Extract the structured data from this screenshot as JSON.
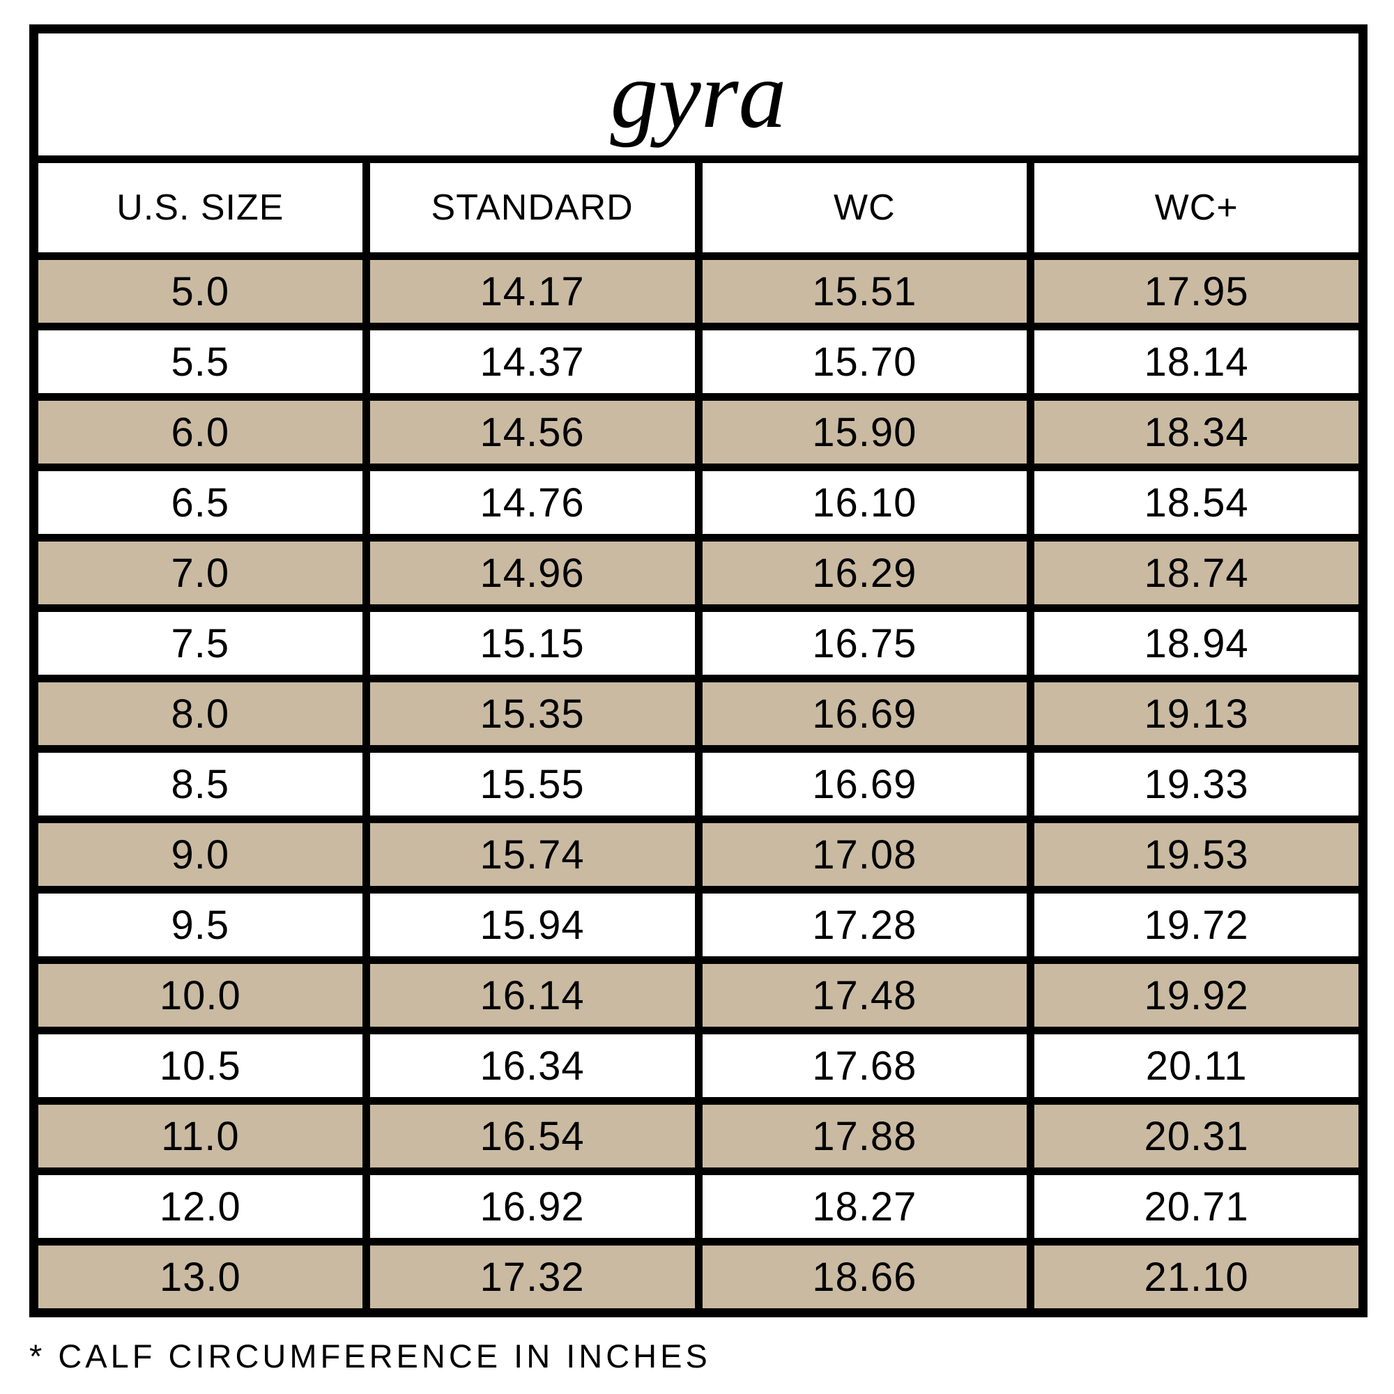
{
  "title": "gyra",
  "chart_data": {
    "type": "table",
    "title": "gyra",
    "columns": [
      "U.S. SIZE",
      "STANDARD",
      "WC",
      "WC+"
    ],
    "rows": [
      [
        "5.0",
        "14.17",
        "15.51",
        "17.95"
      ],
      [
        "5.5",
        "14.37",
        "15.70",
        "18.14"
      ],
      [
        "6.0",
        "14.56",
        "15.90",
        "18.34"
      ],
      [
        "6.5",
        "14.76",
        "16.10",
        "18.54"
      ],
      [
        "7.0",
        "14.96",
        "16.29",
        "18.74"
      ],
      [
        "7.5",
        "15.15",
        "16.75",
        "18.94"
      ],
      [
        "8.0",
        "15.35",
        "16.69",
        "19.13"
      ],
      [
        "8.5",
        "15.55",
        "16.69",
        "19.33"
      ],
      [
        "9.0",
        "15.74",
        "17.08",
        "19.53"
      ],
      [
        "9.5",
        "15.94",
        "17.28",
        "19.72"
      ],
      [
        "10.0",
        "16.14",
        "17.48",
        "19.92"
      ],
      [
        "10.5",
        "16.34",
        "17.68",
        "20.11"
      ],
      [
        "11.0",
        "16.54",
        "17.88",
        "20.31"
      ],
      [
        "12.0",
        "16.92",
        "18.27",
        "20.71"
      ],
      [
        "13.0",
        "17.32",
        "18.66",
        "21.10"
      ]
    ],
    "footnote": "* CALF CIRCUMFERENCE IN INCHES",
    "row_stripe_colors": [
      "#c9baa1",
      "#ffffff"
    ],
    "border_color": "#000000",
    "layout": {
      "grid": "off",
      "legend": "none",
      "units": "inches"
    }
  }
}
